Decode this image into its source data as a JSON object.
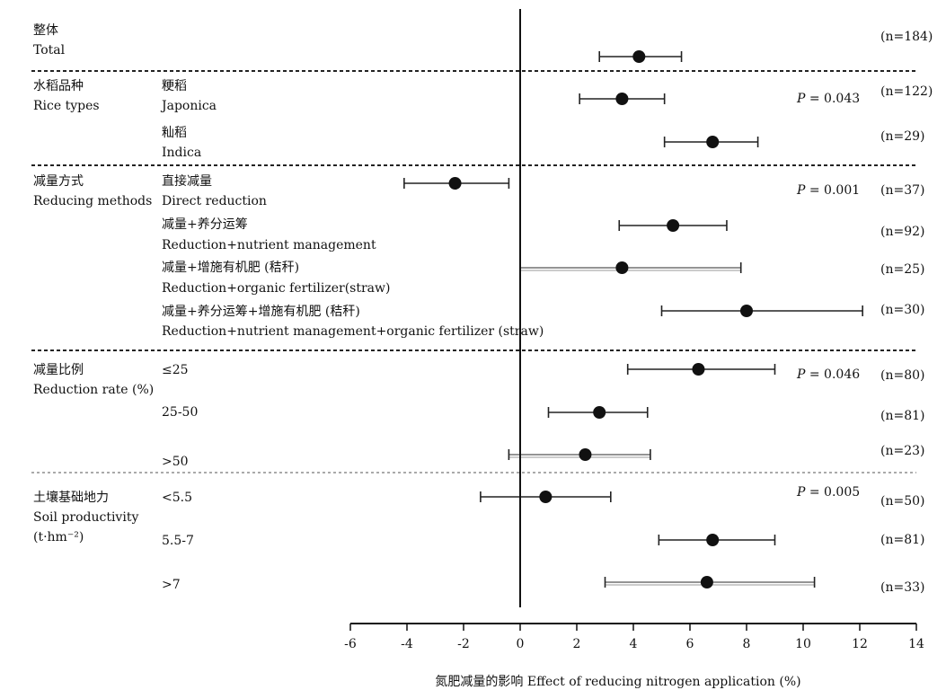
{
  "chart_data": {
    "type": "forest",
    "xlabel": "氮肥减量的影响 Effect of reducing nitrogen application (%)",
    "xlim": [
      -6,
      14
    ],
    "xticks": [
      -6,
      -4,
      -2,
      0,
      2,
      4,
      6,
      8,
      10,
      12,
      14
    ],
    "reference_line": 0,
    "groups": [
      {
        "name_zh": "整体",
        "name_en": "Total",
        "rows": [
          {
            "label_zh": "",
            "label_en": "",
            "mean": 4.2,
            "ci_low": 2.8,
            "ci_high": 5.7,
            "n": "(n=184)"
          }
        ]
      },
      {
        "name_zh": "水稻品种",
        "name_en": "Rice types",
        "p_label": "P",
        "p_value": " = 0.043",
        "rows": [
          {
            "label_zh": "粳稻",
            "label_en": "Japonica",
            "mean": 3.6,
            "ci_low": 2.1,
            "ci_high": 5.1,
            "n": "(n=122)"
          },
          {
            "label_zh": "籼稻",
            "label_en": "Indica",
            "mean": 6.8,
            "ci_low": 5.1,
            "ci_high": 8.4,
            "n": "(n=29)"
          }
        ]
      },
      {
        "name_zh": "减量方式",
        "name_en": "Reducing methods",
        "p_label": "P",
        "p_value": " = 0.001",
        "rows": [
          {
            "label_zh": "直接减量",
            "label_en": "Direct reduction",
            "mean": -2.3,
            "ci_low": -4.1,
            "ci_high": -0.4,
            "n": "(n=37)"
          },
          {
            "label_zh": "减量+养分运筹",
            "label_en": "Reduction+nutrient management",
            "mean": 5.4,
            "ci_low": 3.5,
            "ci_high": 7.3,
            "n": "(n=92)"
          },
          {
            "label_zh": "减量+增施有机肥 (秸秆)",
            "label_en": "Reduction+organic fertilizer(straw)",
            "mean": 3.6,
            "ci_low": 0.0,
            "ci_high": 7.8,
            "n": "(n=25)"
          },
          {
            "label_zh": "减量+养分运筹+增施有机肥 (秸秆)",
            "label_en": "Reduction+nutrient management+organic fertilizer (straw)",
            "mean": 8.0,
            "ci_low": 5.0,
            "ci_high": 12.1,
            "n": "(n=30)"
          }
        ]
      },
      {
        "name_zh": "减量比例",
        "name_en": "Reduction rate (%)",
        "p_label": "P",
        "p_value": " = 0.046",
        "rows": [
          {
            "label_zh": "≤25",
            "label_en": "",
            "mean": 6.3,
            "ci_low": 3.8,
            "ci_high": 9.0,
            "n": "(n=80)"
          },
          {
            "label_zh": "25-50",
            "label_en": "",
            "mean": 2.8,
            "ci_low": 1.0,
            "ci_high": 4.5,
            "n": "(n=81)"
          },
          {
            "label_zh": ">50",
            "label_en": "",
            "mean": 2.3,
            "ci_low": -0.4,
            "ci_high": 4.6,
            "n": "(n=23)"
          }
        ]
      },
      {
        "name_zh": "土壤基础地力",
        "name_en": "Soil productivity",
        "name_en2": "(t·hm⁻²)",
        "p_label": "P",
        "p_value": " = 0.005",
        "rows": [
          {
            "label_zh": "<5.5",
            "label_en": "",
            "mean": 0.9,
            "ci_low": -1.4,
            "ci_high": 3.2,
            "n": "(n=50)"
          },
          {
            "label_zh": "5.5-7",
            "label_en": "",
            "mean": 6.8,
            "ci_low": 4.9,
            "ci_high": 9.0,
            "n": "(n=81)"
          },
          {
            "label_zh": ">7",
            "label_en": "",
            "mean": 6.6,
            "ci_low": 3.0,
            "ci_high": 10.4,
            "n": "(n=33)"
          }
        ]
      }
    ]
  }
}
